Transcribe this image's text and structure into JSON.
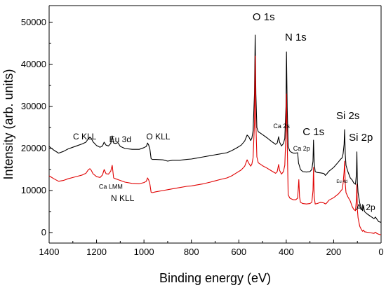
{
  "chart_data": {
    "type": "line",
    "title": "",
    "xlabel": "Binding energy (eV)",
    "ylabel": "Intensity (arb. units)",
    "xlim": [
      1400,
      0
    ],
    "x_reversed": true,
    "ylim": [
      -2500,
      54000
    ],
    "x_ticks": [
      1400,
      1200,
      1000,
      800,
      600,
      400,
      200,
      0
    ],
    "y_ticks": [
      0,
      10000,
      20000,
      30000,
      40000,
      50000
    ],
    "grid": false,
    "legend": "none",
    "series": [
      {
        "color": "#000000",
        "points": [
          [
            1400,
            20500
          ],
          [
            1380,
            19600
          ],
          [
            1360,
            18900
          ],
          [
            1340,
            19300
          ],
          [
            1320,
            19900
          ],
          [
            1300,
            20300
          ],
          [
            1280,
            20700
          ],
          [
            1260,
            21100
          ],
          [
            1245,
            21500
          ],
          [
            1235,
            22300
          ],
          [
            1228,
            22700
          ],
          [
            1222,
            22400
          ],
          [
            1215,
            21600
          ],
          [
            1200,
            20700
          ],
          [
            1185,
            20300
          ],
          [
            1175,
            20600
          ],
          [
            1168,
            21500
          ],
          [
            1160,
            20800
          ],
          [
            1150,
            20600
          ],
          [
            1140,
            21200
          ],
          [
            1134,
            23000
          ],
          [
            1128,
            21300
          ],
          [
            1120,
            21200
          ],
          [
            1110,
            21400
          ],
          [
            1100,
            20500
          ],
          [
            1080,
            20000
          ],
          [
            1050,
            19800
          ],
          [
            1020,
            19800
          ],
          [
            1000,
            20200
          ],
          [
            990,
            20500
          ],
          [
            985,
            21300
          ],
          [
            980,
            20800
          ],
          [
            975,
            19800
          ],
          [
            970,
            17600
          ],
          [
            965,
            17400
          ],
          [
            950,
            17400
          ],
          [
            920,
            17300
          ],
          [
            900,
            17000
          ],
          [
            880,
            17200
          ],
          [
            850,
            17200
          ],
          [
            820,
            17400
          ],
          [
            800,
            17500
          ],
          [
            780,
            17700
          ],
          [
            750,
            18000
          ],
          [
            720,
            18300
          ],
          [
            700,
            18500
          ],
          [
            680,
            18700
          ],
          [
            650,
            19000
          ],
          [
            630,
            19500
          ],
          [
            610,
            20100
          ],
          [
            590,
            20800
          ],
          [
            575,
            21800
          ],
          [
            565,
            23200
          ],
          [
            558,
            22800
          ],
          [
            550,
            21900
          ],
          [
            545,
            22500
          ],
          [
            540,
            24200
          ],
          [
            534,
            33000
          ],
          [
            531,
            47000
          ],
          [
            528,
            33000
          ],
          [
            524,
            25000
          ],
          [
            518,
            24000
          ],
          [
            510,
            23700
          ],
          [
            500,
            23300
          ],
          [
            480,
            22500
          ],
          [
            460,
            21600
          ],
          [
            445,
            21000
          ],
          [
            438,
            21300
          ],
          [
            432,
            22800
          ],
          [
            428,
            21500
          ],
          [
            420,
            20600
          ],
          [
            412,
            21200
          ],
          [
            406,
            22400
          ],
          [
            401,
            30000
          ],
          [
            399,
            43000
          ],
          [
            396,
            30000
          ],
          [
            392,
            20500
          ],
          [
            385,
            19400
          ],
          [
            378,
            19100
          ],
          [
            370,
            18900
          ],
          [
            360,
            18900
          ],
          [
            352,
            19000
          ],
          [
            348,
            16500
          ],
          [
            345,
            16000
          ],
          [
            340,
            15000
          ],
          [
            330,
            14500
          ],
          [
            315,
            14400
          ],
          [
            300,
            14500
          ],
          [
            292,
            15000
          ],
          [
            287,
            17000
          ],
          [
            285,
            22000
          ],
          [
            282,
            16500
          ],
          [
            278,
            14500
          ],
          [
            270,
            14300
          ],
          [
            255,
            14200
          ],
          [
            245,
            14100
          ],
          [
            240,
            14000
          ],
          [
            235,
            13600
          ],
          [
            230,
            13900
          ],
          [
            220,
            14600
          ],
          [
            200,
            15500
          ],
          [
            180,
            16800
          ],
          [
            170,
            17500
          ],
          [
            164,
            17800
          ],
          [
            160,
            18800
          ],
          [
            156,
            21000
          ],
          [
            154,
            24500
          ],
          [
            151,
            18500
          ],
          [
            148,
            16000
          ],
          [
            140,
            14500
          ],
          [
            130,
            13000
          ],
          [
            122,
            12500
          ],
          [
            115,
            11800
          ],
          [
            108,
            11500
          ],
          [
            104,
            14000
          ],
          [
            102,
            19200
          ],
          [
            100,
            12000
          ],
          [
            97,
            9500
          ],
          [
            90,
            7000
          ],
          [
            84,
            6000
          ],
          [
            78,
            5200
          ],
          [
            74,
            6400
          ],
          [
            70,
            5000
          ],
          [
            60,
            4500
          ],
          [
            48,
            4000
          ],
          [
            40,
            3700
          ],
          [
            30,
            3300
          ],
          [
            24,
            3700
          ],
          [
            18,
            3200
          ],
          [
            10,
            2600
          ],
          [
            4,
            2500
          ],
          [
            0,
            2400
          ]
        ]
      },
      {
        "color": "#e00000",
        "points": [
          [
            1400,
            13500
          ],
          [
            1380,
            12800
          ],
          [
            1360,
            12200
          ],
          [
            1340,
            12400
          ],
          [
            1320,
            12800
          ],
          [
            1300,
            13100
          ],
          [
            1280,
            13400
          ],
          [
            1260,
            13700
          ],
          [
            1245,
            14100
          ],
          [
            1235,
            14900
          ],
          [
            1228,
            15200
          ],
          [
            1222,
            14800
          ],
          [
            1215,
            14000
          ],
          [
            1200,
            13300
          ],
          [
            1185,
            13100
          ],
          [
            1175,
            13700
          ],
          [
            1168,
            15000
          ],
          [
            1160,
            14000
          ],
          [
            1150,
            13900
          ],
          [
            1140,
            14600
          ],
          [
            1134,
            16000
          ],
          [
            1128,
            13000
          ],
          [
            1120,
            12800
          ],
          [
            1110,
            12600
          ],
          [
            1100,
            12400
          ],
          [
            1080,
            12000
          ],
          [
            1050,
            11700
          ],
          [
            1020,
            11600
          ],
          [
            1000,
            11900
          ],
          [
            990,
            12200
          ],
          [
            985,
            13000
          ],
          [
            980,
            12500
          ],
          [
            975,
            11500
          ],
          [
            970,
            9600
          ],
          [
            965,
            9500
          ],
          [
            950,
            9700
          ],
          [
            920,
            10000
          ],
          [
            900,
            10200
          ],
          [
            880,
            10400
          ],
          [
            850,
            10700
          ],
          [
            820,
            11000
          ],
          [
            800,
            11100
          ],
          [
            780,
            11300
          ],
          [
            750,
            11600
          ],
          [
            720,
            12000
          ],
          [
            700,
            12300
          ],
          [
            680,
            12600
          ],
          [
            650,
            13000
          ],
          [
            630,
            13500
          ],
          [
            610,
            14200
          ],
          [
            590,
            14900
          ],
          [
            575,
            15800
          ],
          [
            565,
            17300
          ],
          [
            558,
            16500
          ],
          [
            550,
            15800
          ],
          [
            545,
            16300
          ],
          [
            540,
            17800
          ],
          [
            534,
            26000
          ],
          [
            531,
            42000
          ],
          [
            528,
            26000
          ],
          [
            524,
            18000
          ],
          [
            518,
            16600
          ],
          [
            510,
            16300
          ],
          [
            500,
            15900
          ],
          [
            480,
            15300
          ],
          [
            460,
            14600
          ],
          [
            445,
            14100
          ],
          [
            438,
            14500
          ],
          [
            432,
            16200
          ],
          [
            428,
            14800
          ],
          [
            420,
            13900
          ],
          [
            412,
            14500
          ],
          [
            406,
            16000
          ],
          [
            401,
            24000
          ],
          [
            399,
            33000
          ],
          [
            396,
            22000
          ],
          [
            392,
            9000
          ],
          [
            385,
            8200
          ],
          [
            378,
            8000
          ],
          [
            370,
            7800
          ],
          [
            360,
            7800
          ],
          [
            352,
            8200
          ],
          [
            347,
            12600
          ],
          [
            344,
            8500
          ],
          [
            340,
            7200
          ],
          [
            330,
            6900
          ],
          [
            315,
            6800
          ],
          [
            300,
            6900
          ],
          [
            292,
            7200
          ],
          [
            287,
            10000
          ],
          [
            285,
            15500
          ],
          [
            282,
            8500
          ],
          [
            278,
            6800
          ],
          [
            270,
            6900
          ],
          [
            255,
            7200
          ],
          [
            245,
            7100
          ],
          [
            240,
            7000
          ],
          [
            235,
            6800
          ],
          [
            230,
            7000
          ],
          [
            220,
            7700
          ],
          [
            200,
            8300
          ],
          [
            180,
            9200
          ],
          [
            170,
            9900
          ],
          [
            164,
            10300
          ],
          [
            160,
            11800
          ],
          [
            156,
            14500
          ],
          [
            154,
            17000
          ],
          [
            151,
            11500
          ],
          [
            148,
            9500
          ],
          [
            140,
            8500
          ],
          [
            130,
            7500
          ],
          [
            122,
            6200
          ],
          [
            115,
            5500
          ],
          [
            108,
            5200
          ],
          [
            104,
            8000
          ],
          [
            102,
            11500
          ],
          [
            100,
            5500
          ],
          [
            97,
            3500
          ],
          [
            90,
            1500
          ],
          [
            84,
            800
          ],
          [
            78,
            300
          ],
          [
            74,
            600
          ],
          [
            70,
            200
          ],
          [
            60,
            100
          ],
          [
            48,
            0
          ],
          [
            40,
            -100
          ],
          [
            30,
            -200
          ],
          [
            24,
            100
          ],
          [
            18,
            -200
          ],
          [
            10,
            -400
          ],
          [
            4,
            -500
          ],
          [
            0,
            -500
          ]
        ]
      }
    ],
    "annotations": [
      {
        "text": "O 1s",
        "x": 495,
        "y": 50500,
        "size": "large"
      },
      {
        "text": "N 1s",
        "x": 360,
        "y": 45700,
        "size": "large"
      },
      {
        "text": "Si 2s",
        "x": 140,
        "y": 27000,
        "size": "large"
      },
      {
        "text": "C 1s",
        "x": 285,
        "y": 23200,
        "size": "large"
      },
      {
        "text": "Si 2p",
        "x": 85,
        "y": 21800,
        "size": "large"
      },
      {
        "text": "C KLL",
        "x": 1250,
        "y": 22200,
        "size": "medium"
      },
      {
        "text": "Eu 3d",
        "x": 1100,
        "y": 21500,
        "size": "medium"
      },
      {
        "text": "O KLL",
        "x": 940,
        "y": 22200,
        "size": "medium"
      },
      {
        "text": "N KLL",
        "x": 1090,
        "y": 7500,
        "size": "medium"
      },
      {
        "text": "Al 2p",
        "x": 65,
        "y": 5300,
        "size": "medium"
      },
      {
        "text": "Ca 2s",
        "x": 420,
        "y": 24800,
        "size": "small"
      },
      {
        "text": "Ca 2p",
        "x": 335,
        "y": 19500,
        "size": "small"
      },
      {
        "text": "Ca LMM",
        "x": 1140,
        "y": 10400,
        "size": "small"
      },
      {
        "text": "Eu 4d",
        "x": 165,
        "y": 11800,
        "size": "tiny"
      }
    ]
  }
}
